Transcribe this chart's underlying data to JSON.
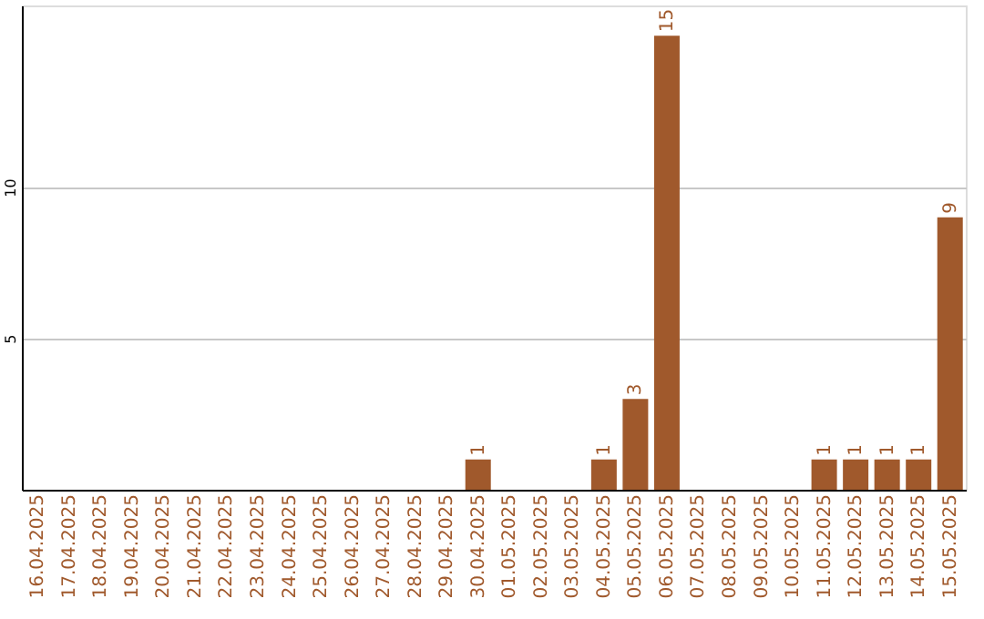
{
  "chart_data": {
    "type": "bar",
    "categories": [
      "16.04.2025",
      "17.04.2025",
      "18.04.2025",
      "19.04.2025",
      "20.04.2025",
      "21.04.2025",
      "22.04.2025",
      "23.04.2025",
      "24.04.2025",
      "25.04.2025",
      "26.04.2025",
      "27.04.2025",
      "28.04.2025",
      "29.04.2025",
      "30.04.2025",
      "01.05.2025",
      "02.05.2025",
      "03.05.2025",
      "04.05.2025",
      "05.05.2025",
      "06.05.2025",
      "07.05.2025",
      "08.05.2025",
      "09.05.2025",
      "10.05.2025",
      "11.05.2025",
      "12.05.2025",
      "13.05.2025",
      "14.05.2025",
      "15.05.2025"
    ],
    "values": [
      0,
      0,
      0,
      0,
      0,
      0,
      0,
      0,
      0,
      0,
      0,
      0,
      0,
      0,
      1,
      0,
      0,
      0,
      1,
      3,
      15,
      0,
      0,
      0,
      0,
      1,
      1,
      1,
      1,
      9
    ],
    "value_labels": [
      null,
      null,
      null,
      null,
      null,
      null,
      null,
      null,
      null,
      null,
      null,
      null,
      null,
      null,
      "1",
      null,
      null,
      null,
      "1",
      "3",
      "15",
      null,
      null,
      null,
      null,
      "1",
      "1",
      "1",
      "1",
      "9"
    ],
    "color": "#a0592c",
    "ylim": [
      0,
      16
    ],
    "yticks": [
      5,
      10
    ],
    "grid": "y"
  }
}
